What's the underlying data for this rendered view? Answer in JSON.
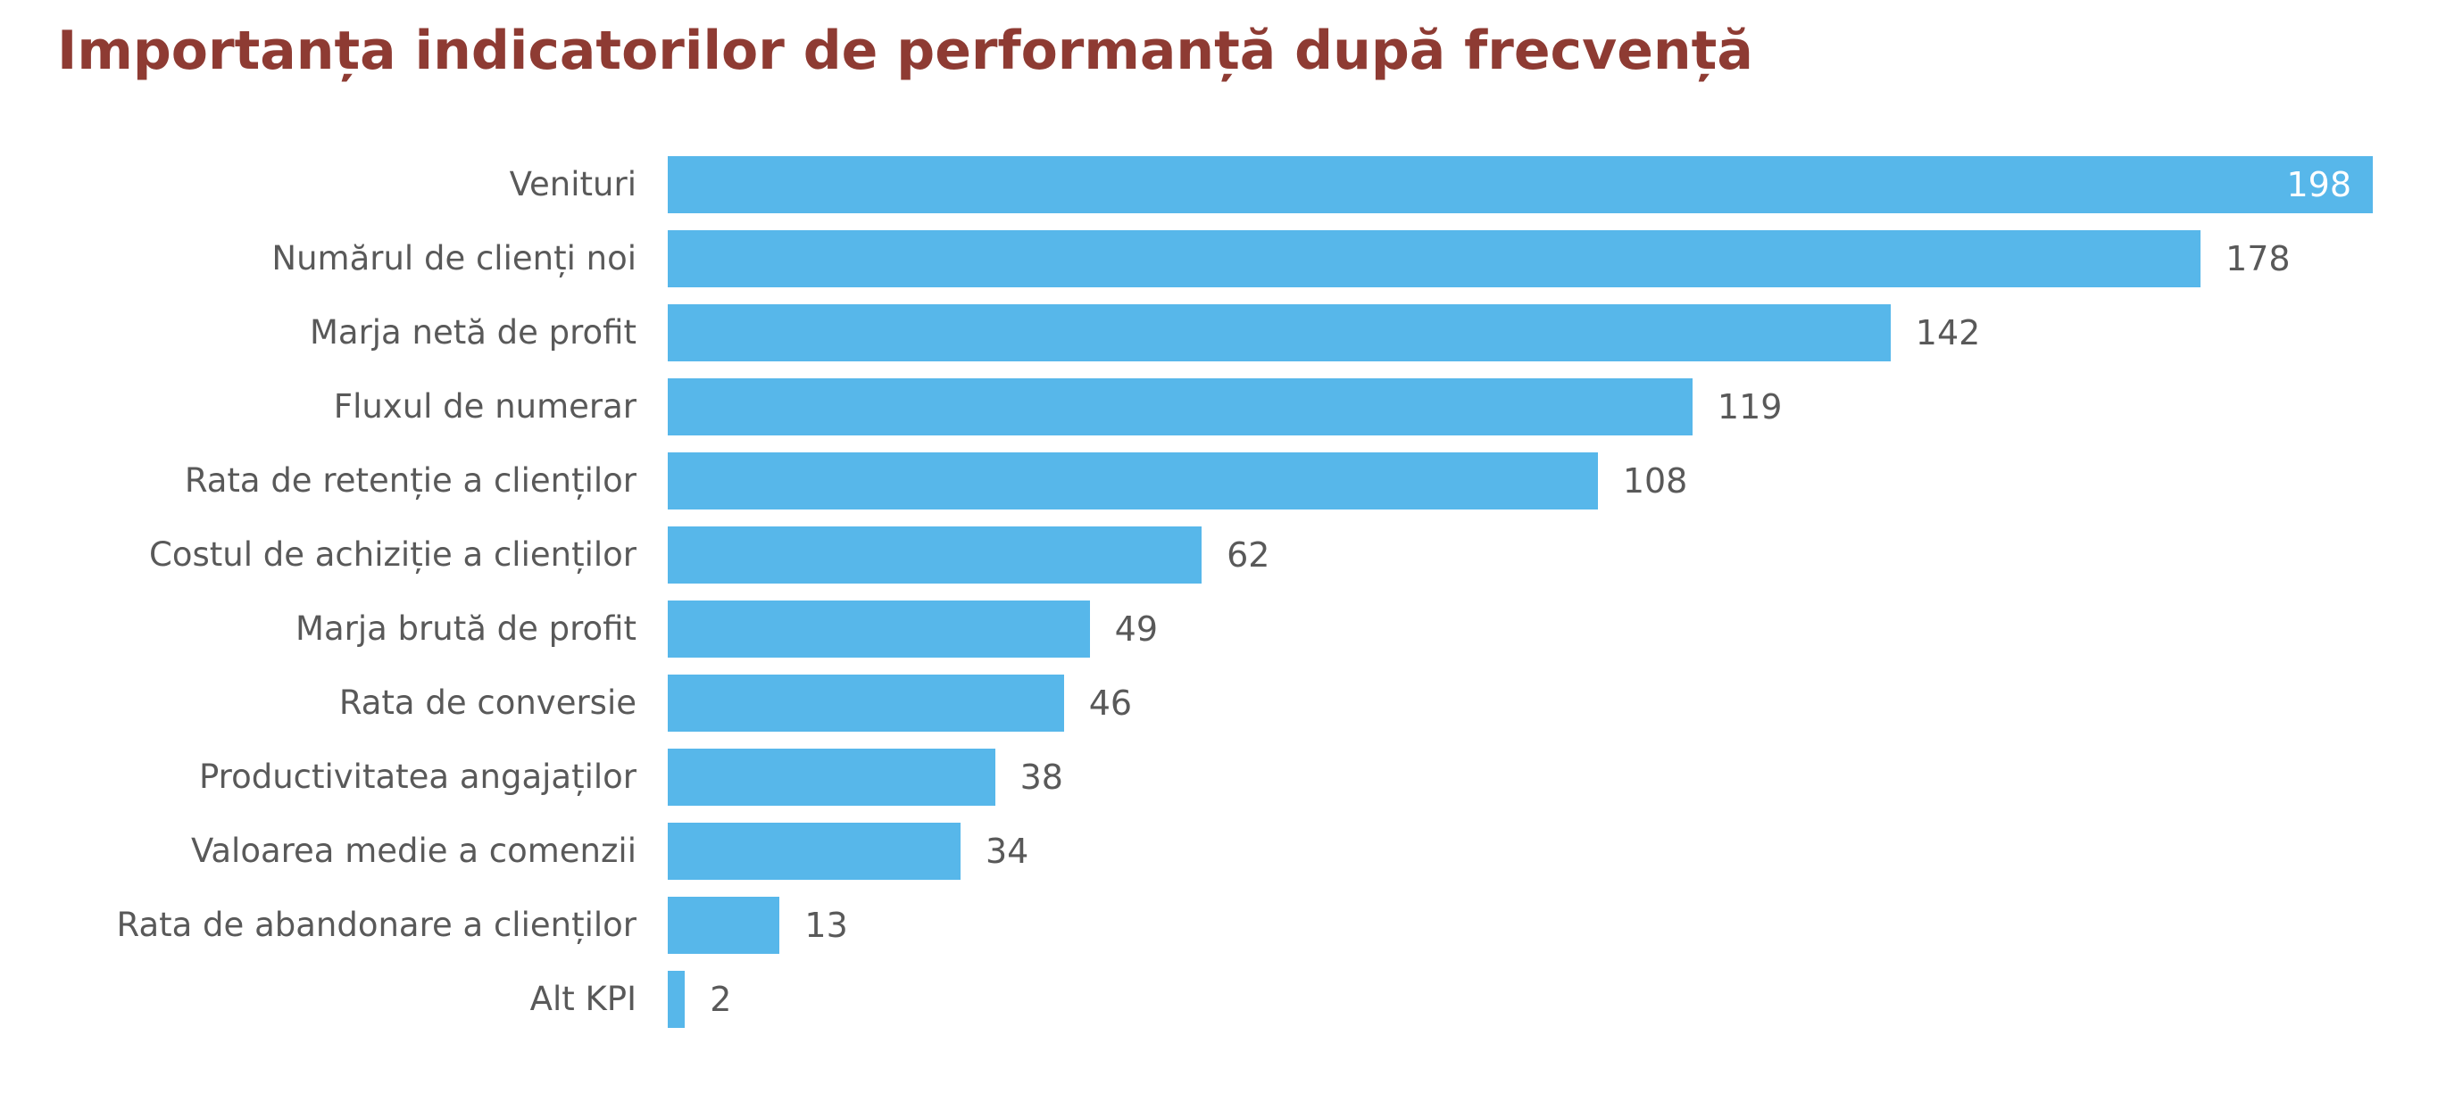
{
  "title": "Importanța indicatorilor de performanță după frecvență",
  "colors": {
    "title": "#8E3B33",
    "bar": "#57B7EA",
    "label": "#595959",
    "value_outside": "#595959",
    "value_inside": "#FFFFFF",
    "background": "#FFFFFF"
  },
  "chart_data": {
    "type": "bar",
    "orientation": "horizontal",
    "title": "Importanța indicatorilor de performanță după frecvență",
    "xlabel": "",
    "ylabel": "",
    "xlim": [
      0,
      198
    ],
    "grid": false,
    "legend": false,
    "value_label_style": "value shown at end of each bar; largest bar shows its value in white inside the bar, all others in gray outside the bar",
    "categories": [
      "Venituri",
      "Numărul de clienți noi",
      "Marja netă de profit",
      "Fluxul de numerar",
      "Rata de retenție a clienților",
      "Costul de achiziție a clienților",
      "Marja brută de profit",
      "Rata de conversie",
      "Productivitatea angajaților",
      "Valoarea medie a comenzii",
      "Rata de abandonare a clienților",
      "Alt KPI"
    ],
    "values": [
      198,
      178,
      142,
      119,
      108,
      62,
      49,
      46,
      38,
      34,
      13,
      2
    ]
  }
}
